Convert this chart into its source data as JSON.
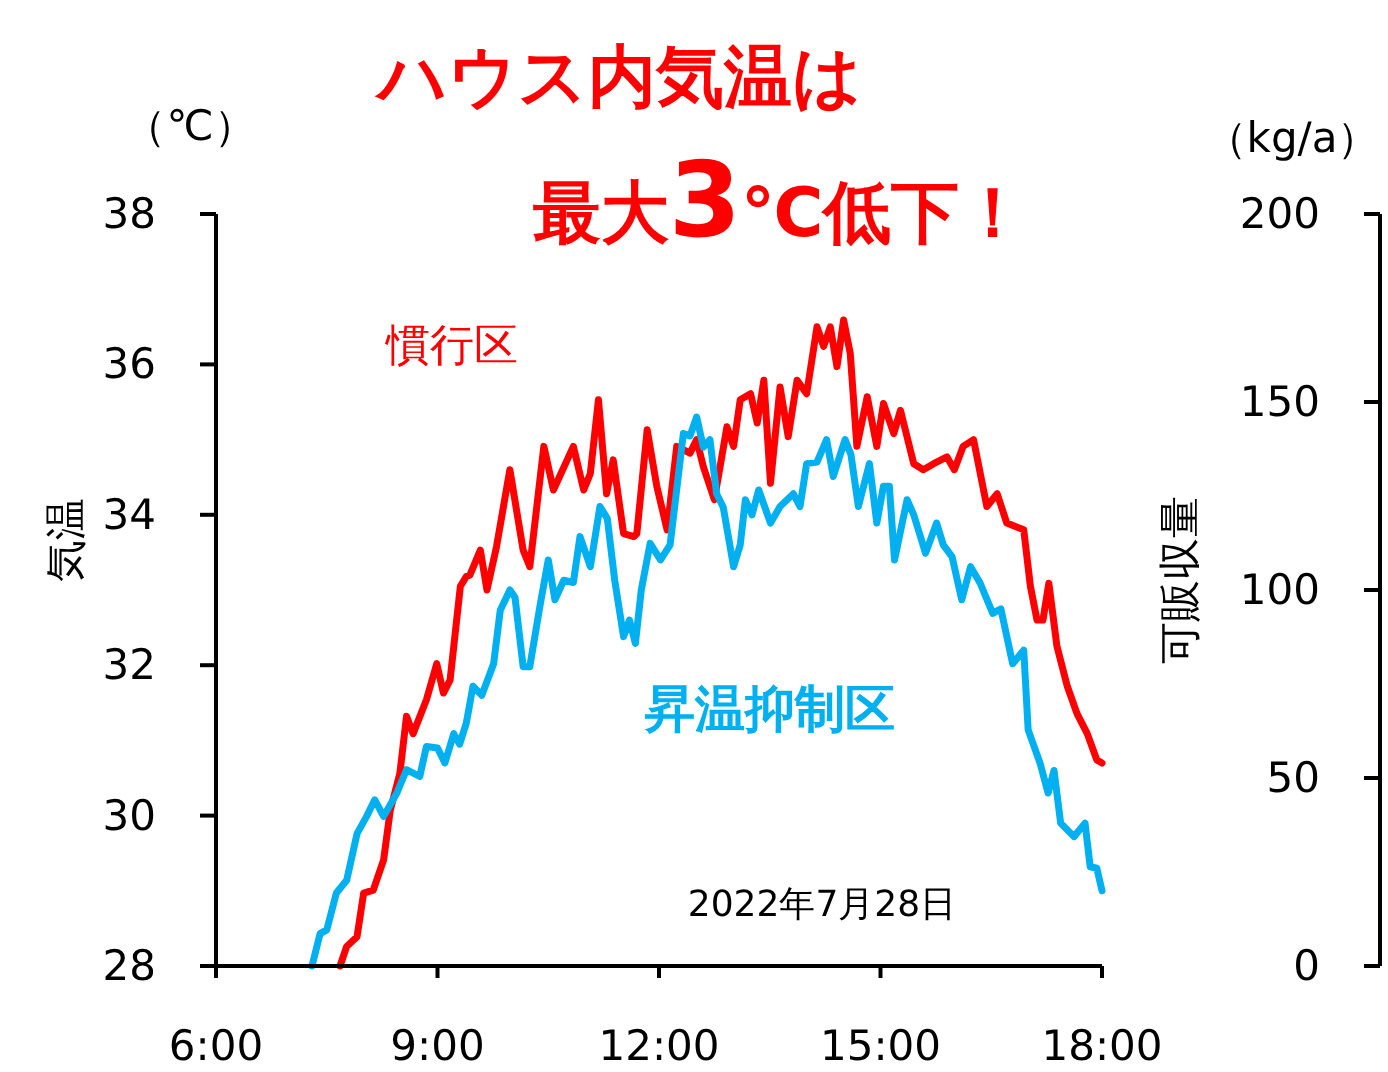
{
  "chart_data": {
    "type": "line",
    "title": "ハウス内気温は",
    "subtitle": "最大3℃低下！",
    "ylabel": "気温",
    "y2label": "可販収量",
    "annotations": [
      "（℃）",
      "（kg/a）",
      "2022年7月28日"
    ],
    "xlim": [
      6,
      18
    ],
    "xticks": [
      {
        "value": 6,
        "label": "6:00"
      },
      {
        "value": 9,
        "label": "9:00"
      },
      {
        "value": 12,
        "label": "12:00"
      },
      {
        "value": 15,
        "label": "15:00"
      },
      {
        "value": 18,
        "label": "18:00"
      }
    ],
    "ylim": [
      28,
      38
    ],
    "yticks": [
      28,
      30,
      32,
      34,
      36,
      38
    ],
    "y2lim": [
      0,
      200
    ],
    "y2ticks": [
      0,
      50,
      100,
      150,
      200
    ],
    "grid": false,
    "legend": false,
    "marker": "none",
    "line_style": "solid",
    "series": [
      {
        "name": "慣行区",
        "color": "#ff0000",
        "x": [
          7.68,
          7.77,
          7.91,
          8.0,
          8.13,
          8.27,
          8.36,
          8.49,
          8.58,
          8.67,
          8.85,
          8.99,
          9.08,
          9.17,
          9.31,
          9.39,
          9.44,
          9.58,
          9.67,
          9.8,
          9.98,
          10.16,
          10.25,
          10.44,
          10.57,
          10.84,
          10.98,
          11.07,
          11.18,
          11.29,
          11.38,
          11.52,
          11.66,
          11.7,
          11.84,
          11.97,
          12.11,
          12.24,
          12.42,
          12.51,
          12.6,
          12.75,
          12.92,
          13.01,
          13.1,
          13.24,
          13.33,
          13.42,
          13.51,
          13.64,
          13.75,
          13.87,
          14.0,
          14.14,
          14.23,
          14.32,
          14.41,
          14.5,
          14.59,
          14.68,
          14.82,
          14.95,
          15.04,
          15.18,
          15.27,
          15.45,
          15.58,
          15.72,
          15.9,
          16.0,
          16.12,
          16.26,
          16.44,
          16.58,
          16.71,
          16.94,
          17.03,
          17.12,
          17.2,
          17.28,
          17.39,
          17.53,
          17.66,
          17.8,
          17.93,
          18.0
        ],
        "values": [
          28.0,
          28.26,
          28.39,
          28.97,
          29.01,
          29.41,
          30.07,
          30.56,
          31.32,
          31.09,
          31.54,
          32.02,
          31.63,
          31.8,
          33.05,
          33.18,
          33.2,
          33.53,
          33.0,
          33.58,
          34.6,
          33.53,
          33.31,
          34.91,
          34.33,
          34.91,
          34.33,
          34.55,
          35.53,
          34.28,
          34.73,
          33.75,
          33.71,
          33.75,
          35.13,
          34.38,
          33.8,
          34.91,
          34.82,
          35.0,
          34.64,
          34.2,
          35.17,
          34.91,
          35.53,
          35.61,
          35.22,
          35.79,
          34.42,
          35.7,
          35.04,
          35.79,
          35.61,
          36.5,
          36.24,
          36.5,
          35.97,
          36.59,
          36.15,
          34.91,
          35.57,
          34.91,
          35.48,
          35.08,
          35.39,
          34.68,
          34.6,
          34.68,
          34.77,
          34.6,
          34.91,
          35.0,
          34.11,
          34.28,
          33.89,
          33.8,
          33.05,
          32.6,
          32.6,
          33.09,
          32.25,
          31.72,
          31.36,
          31.09,
          30.74,
          30.7
        ]
      },
      {
        "name": "昇温抑制区",
        "color": "#00b0f0",
        "x": [
          7.3,
          7.41,
          7.5,
          7.63,
          7.77,
          7.91,
          8.04,
          8.15,
          8.27,
          8.45,
          8.58,
          8.76,
          8.85,
          9.0,
          9.1,
          9.22,
          9.3,
          9.39,
          9.48,
          9.6,
          9.76,
          9.85,
          9.98,
          10.05,
          10.16,
          10.25,
          10.39,
          10.5,
          10.59,
          10.71,
          10.84,
          10.93,
          11.07,
          11.2,
          11.3,
          11.4,
          11.52,
          11.6,
          11.68,
          11.76,
          11.88,
          12.02,
          12.15,
          12.33,
          12.42,
          12.51,
          12.6,
          12.69,
          12.78,
          12.87,
          13.01,
          13.1,
          13.17,
          13.26,
          13.35,
          13.51,
          13.64,
          13.82,
          13.91,
          14.0,
          14.14,
          14.27,
          14.36,
          14.52,
          14.6,
          14.7,
          14.85,
          14.95,
          15.04,
          15.12,
          15.19,
          15.36,
          15.45,
          15.61,
          15.76,
          15.85,
          15.97,
          16.1,
          16.22,
          16.35,
          16.52,
          16.63,
          16.79,
          16.94,
          17.0,
          17.16,
          17.27,
          17.35,
          17.44,
          17.62,
          17.77,
          17.84,
          17.93,
          18.0
        ],
        "values": [
          28.0,
          28.43,
          28.48,
          28.97,
          29.14,
          29.76,
          29.99,
          30.21,
          29.99,
          30.3,
          30.61,
          30.52,
          30.92,
          30.9,
          30.7,
          31.09,
          30.95,
          31.23,
          31.72,
          31.6,
          32.02,
          32.73,
          33.0,
          32.9,
          31.98,
          31.98,
          32.8,
          33.4,
          32.87,
          33.13,
          33.1,
          33.71,
          33.31,
          34.11,
          33.95,
          33.13,
          32.38,
          32.6,
          32.29,
          33.0,
          33.62,
          33.4,
          33.6,
          35.08,
          35.05,
          35.3,
          34.9,
          35.0,
          34.28,
          34.1,
          33.31,
          33.6,
          34.2,
          34.0,
          34.33,
          33.89,
          34.11,
          34.28,
          34.11,
          34.68,
          34.7,
          35.0,
          34.51,
          35.0,
          34.8,
          34.11,
          34.68,
          33.89,
          34.38,
          34.38,
          33.4,
          34.2,
          34.0,
          33.49,
          33.89,
          33.6,
          33.44,
          32.87,
          33.31,
          33.09,
          32.69,
          32.75,
          32.02,
          32.2,
          31.14,
          30.7,
          30.3,
          30.6,
          29.9,
          29.72,
          29.9,
          29.32,
          29.3,
          29.0
        ]
      }
    ]
  }
}
